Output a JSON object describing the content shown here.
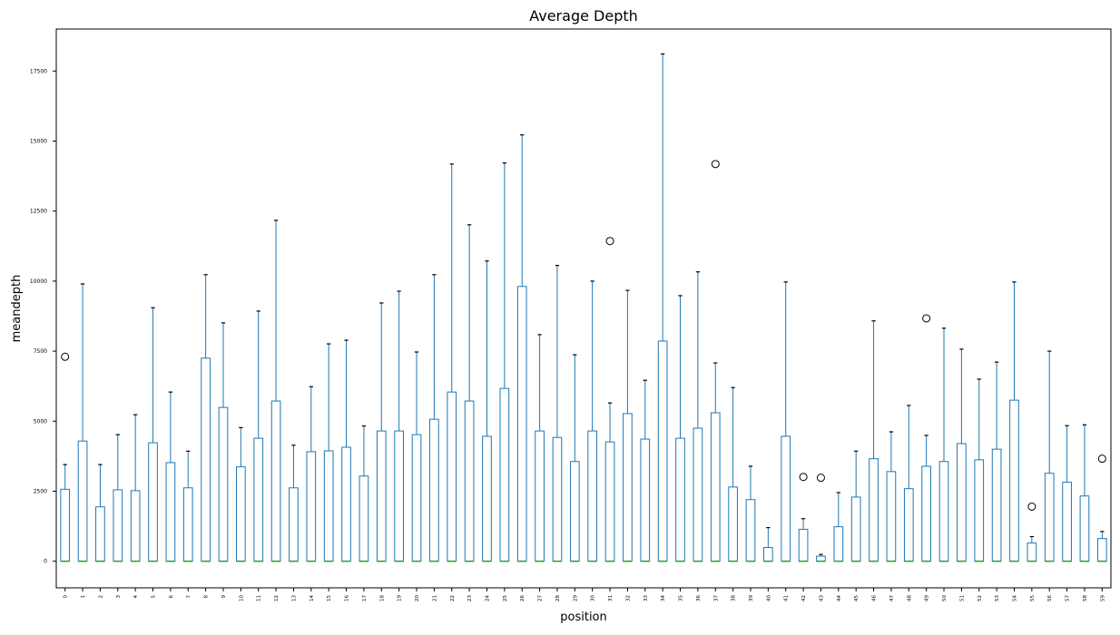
{
  "chart_data": {
    "type": "box",
    "title": "Average Depth",
    "xlabel": "position",
    "ylabel": "meandepth",
    "ylim": [
      -950,
      19000
    ],
    "yticks": [
      0,
      2500,
      5000,
      7500,
      10000,
      12500,
      15000,
      17500
    ],
    "grid": false,
    "colors": {
      "box": "#1f77b4",
      "median": "#2ca02c",
      "whisker_cap": "#000000",
      "outlier": "#000000"
    },
    "boxes": [
      {
        "position": "0",
        "q1": 0,
        "median": 0,
        "q3": 2570,
        "whisker_high": 3450,
        "outliers": [
          7300
        ]
      },
      {
        "position": "1",
        "q1": 0,
        "median": 0,
        "q3": 4290,
        "whisker_high": 9900,
        "outliers": []
      },
      {
        "position": "2",
        "q1": 0,
        "median": 0,
        "q3": 1940,
        "whisker_high": 3450,
        "outliers": []
      },
      {
        "position": "3",
        "q1": 0,
        "median": 0,
        "q3": 2550,
        "whisker_high": 4520,
        "outliers": []
      },
      {
        "position": "4",
        "q1": 0,
        "median": 0,
        "q3": 2520,
        "whisker_high": 5230,
        "outliers": []
      },
      {
        "position": "5",
        "q1": 0,
        "median": 0,
        "q3": 4230,
        "whisker_high": 9050,
        "outliers": []
      },
      {
        "position": "6",
        "q1": 0,
        "median": 0,
        "q3": 3520,
        "whisker_high": 6040,
        "outliers": []
      },
      {
        "position": "7",
        "q1": 0,
        "median": 0,
        "q3": 2620,
        "whisker_high": 3930,
        "outliers": []
      },
      {
        "position": "8",
        "q1": 0,
        "median": 0,
        "q3": 7250,
        "whisker_high": 10230,
        "outliers": []
      },
      {
        "position": "9",
        "q1": 0,
        "median": 0,
        "q3": 5490,
        "whisker_high": 8510,
        "outliers": []
      },
      {
        "position": "10",
        "q1": 0,
        "median": 0,
        "q3": 3370,
        "whisker_high": 4770,
        "outliers": []
      },
      {
        "position": "11",
        "q1": 0,
        "median": 0,
        "q3": 4390,
        "whisker_high": 8930,
        "outliers": []
      },
      {
        "position": "12",
        "q1": 0,
        "median": 0,
        "q3": 5720,
        "whisker_high": 12170,
        "outliers": []
      },
      {
        "position": "13",
        "q1": 0,
        "median": 0,
        "q3": 2620,
        "whisker_high": 4140,
        "outliers": []
      },
      {
        "position": "14",
        "q1": 0,
        "median": 0,
        "q3": 3910,
        "whisker_high": 6230,
        "outliers": []
      },
      {
        "position": "15",
        "q1": 0,
        "median": 0,
        "q3": 3940,
        "whisker_high": 7760,
        "outliers": []
      },
      {
        "position": "16",
        "q1": 0,
        "median": 0,
        "q3": 4070,
        "whisker_high": 7890,
        "outliers": []
      },
      {
        "position": "17",
        "q1": 0,
        "median": 0,
        "q3": 3040,
        "whisker_high": 4830,
        "outliers": []
      },
      {
        "position": "18",
        "q1": 0,
        "median": 0,
        "q3": 4650,
        "whisker_high": 9220,
        "outliers": []
      },
      {
        "position": "19",
        "q1": 0,
        "median": 0,
        "q3": 4650,
        "whisker_high": 9640,
        "outliers": []
      },
      {
        "position": "20",
        "q1": 0,
        "median": 0,
        "q3": 4520,
        "whisker_high": 7470,
        "outliers": []
      },
      {
        "position": "21",
        "q1": 0,
        "median": 0,
        "q3": 5070,
        "whisker_high": 10230,
        "outliers": []
      },
      {
        "position": "22",
        "q1": 0,
        "median": 0,
        "q3": 6040,
        "whisker_high": 14180,
        "outliers": []
      },
      {
        "position": "23",
        "q1": 0,
        "median": 0,
        "q3": 5720,
        "whisker_high": 12010,
        "outliers": []
      },
      {
        "position": "24",
        "q1": 0,
        "median": 0,
        "q3": 4460,
        "whisker_high": 10720,
        "outliers": []
      },
      {
        "position": "25",
        "q1": 0,
        "median": 0,
        "q3": 6170,
        "whisker_high": 14220,
        "outliers": []
      },
      {
        "position": "26",
        "q1": 0,
        "median": 0,
        "q3": 9810,
        "whisker_high": 15220,
        "outliers": []
      },
      {
        "position": "27",
        "q1": 0,
        "median": 0,
        "q3": 4650,
        "whisker_high": 8090,
        "outliers": []
      },
      {
        "position": "28",
        "q1": 0,
        "median": 0,
        "q3": 4420,
        "whisker_high": 10560,
        "outliers": []
      },
      {
        "position": "29",
        "q1": 0,
        "median": 0,
        "q3": 3560,
        "whisker_high": 7370,
        "outliers": []
      },
      {
        "position": "30",
        "q1": 0,
        "median": 0,
        "q3": 4650,
        "whisker_high": 10000,
        "outliers": []
      },
      {
        "position": "31",
        "q1": 0,
        "median": 0,
        "q3": 4260,
        "whisker_high": 5650,
        "outliers": [
          11430
        ]
      },
      {
        "position": "32",
        "q1": 0,
        "median": 0,
        "q3": 5270,
        "whisker_high": 9670,
        "outliers": []
      },
      {
        "position": "33",
        "q1": 0,
        "median": 0,
        "q3": 4360,
        "whisker_high": 6460,
        "outliers": []
      },
      {
        "position": "34",
        "q1": 0,
        "median": 0,
        "q3": 7860,
        "whisker_high": 18110,
        "outliers": []
      },
      {
        "position": "35",
        "q1": 0,
        "median": 0,
        "q3": 4390,
        "whisker_high": 9480,
        "outliers": []
      },
      {
        "position": "36",
        "q1": 0,
        "median": 0,
        "q3": 4750,
        "whisker_high": 10330,
        "outliers": []
      },
      {
        "position": "37",
        "q1": 0,
        "median": 0,
        "q3": 5300,
        "whisker_high": 7080,
        "outliers": [
          14180
        ]
      },
      {
        "position": "38",
        "q1": 0,
        "median": 0,
        "q3": 2650,
        "whisker_high": 6200,
        "outliers": []
      },
      {
        "position": "39",
        "q1": 0,
        "median": 0,
        "q3": 2200,
        "whisker_high": 3390,
        "outliers": []
      },
      {
        "position": "40",
        "q1": 0,
        "median": 0,
        "q3": 490,
        "whisker_high": 1200,
        "outliers": []
      },
      {
        "position": "41",
        "q1": 0,
        "median": 0,
        "q3": 4460,
        "whisker_high": 9970,
        "outliers": []
      },
      {
        "position": "42",
        "q1": 0,
        "median": 0,
        "q3": 1140,
        "whisker_high": 1520,
        "outliers": [
          3010
        ]
      },
      {
        "position": "43",
        "q1": 0,
        "median": 0,
        "q3": 180,
        "whisker_high": 240,
        "outliers": [
          2980
        ]
      },
      {
        "position": "44",
        "q1": 0,
        "median": 0,
        "q3": 1230,
        "whisker_high": 2450,
        "outliers": []
      },
      {
        "position": "45",
        "q1": 0,
        "median": 0,
        "q3": 2290,
        "whisker_high": 3930,
        "outliers": []
      },
      {
        "position": "46",
        "q1": 0,
        "median": 0,
        "q3": 3660,
        "whisker_high": 8580,
        "outliers": []
      },
      {
        "position": "47",
        "q1": 0,
        "median": 0,
        "q3": 3200,
        "whisker_high": 4620,
        "outliers": []
      },
      {
        "position": "48",
        "q1": 0,
        "median": 0,
        "q3": 2590,
        "whisker_high": 5560,
        "outliers": []
      },
      {
        "position": "49",
        "q1": 0,
        "median": 0,
        "q3": 3390,
        "whisker_high": 4490,
        "outliers": [
          8670
        ]
      },
      {
        "position": "50",
        "q1": 0,
        "median": 0,
        "q3": 3560,
        "whisker_high": 8320,
        "outliers": []
      },
      {
        "position": "51",
        "q1": 0,
        "median": 0,
        "q3": 4200,
        "whisker_high": 7570,
        "outliers": []
      },
      {
        "position": "52",
        "q1": 0,
        "median": 0,
        "q3": 3620,
        "whisker_high": 6500,
        "outliers": []
      },
      {
        "position": "53",
        "q1": 0,
        "median": 0,
        "q3": 4000,
        "whisker_high": 7110,
        "outliers": []
      },
      {
        "position": "54",
        "q1": 0,
        "median": 0,
        "q3": 5750,
        "whisker_high": 9970,
        "outliers": []
      },
      {
        "position": "55",
        "q1": 0,
        "median": 0,
        "q3": 650,
        "whisker_high": 880,
        "outliers": [
          1950
        ]
      },
      {
        "position": "56",
        "q1": 0,
        "median": 0,
        "q3": 3140,
        "whisker_high": 7500,
        "outliers": []
      },
      {
        "position": "57",
        "q1": 0,
        "median": 0,
        "q3": 2820,
        "whisker_high": 4840,
        "outliers": []
      },
      {
        "position": "58",
        "q1": 0,
        "median": 0,
        "q3": 2330,
        "whisker_high": 4870,
        "outliers": []
      },
      {
        "position": "59",
        "q1": 0,
        "median": 0,
        "q3": 810,
        "whisker_high": 1060,
        "outliers": [
          3660
        ]
      }
    ]
  }
}
